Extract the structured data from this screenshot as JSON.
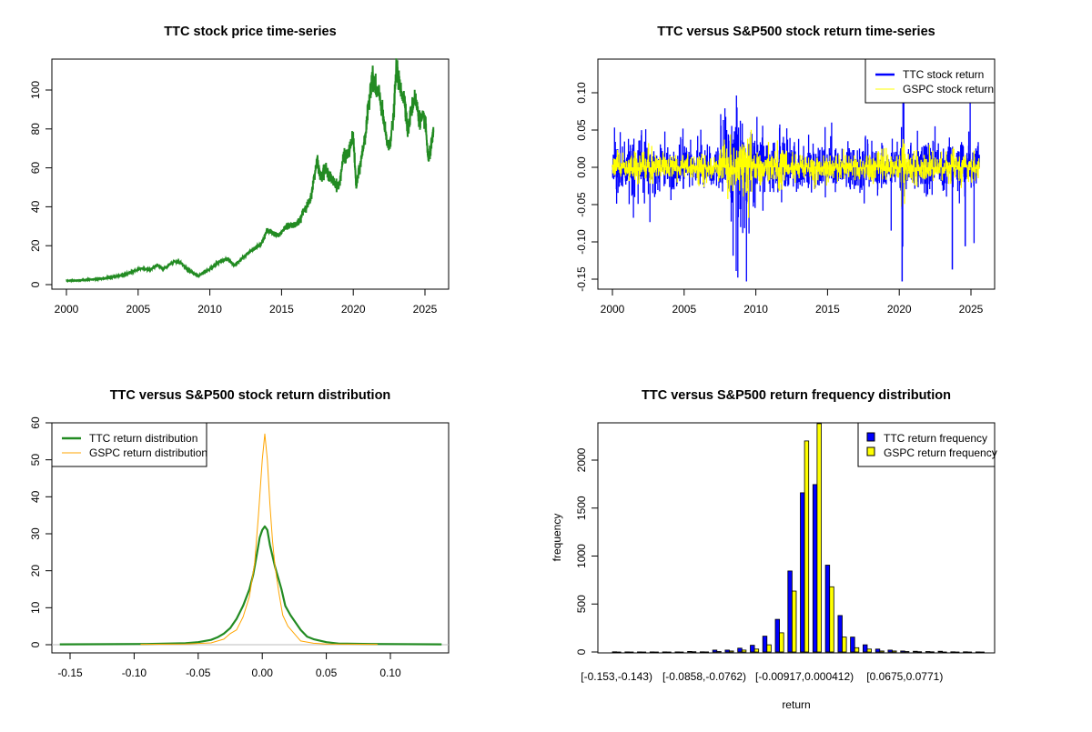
{
  "chart_data": [
    {
      "type": "line",
      "title": "TTC stock price time-series",
      "xlabel": "",
      "ylabel": "",
      "xlim": [
        1999.4,
        2027.1
      ],
      "ylim": [
        -4,
        116
      ],
      "xticks": [
        "2000",
        "2005",
        "2010",
        "2015",
        "2020",
        "2025"
      ],
      "yticks": [
        "0",
        "20",
        "40",
        "60",
        "80",
        "100"
      ],
      "color": "#228B22",
      "series": [
        {
          "name": "TTC price",
          "points": [
            [
              2000,
              2
            ],
            [
              2001,
              2.2
            ],
            [
              2002,
              2.8
            ],
            [
              2003,
              3.5
            ],
            [
              2004,
              5
            ],
            [
              2005.3,
              8.5
            ],
            [
              2005.8,
              7.5
            ],
            [
              2006.3,
              10
            ],
            [
              2006.8,
              8
            ],
            [
              2007.5,
              12
            ],
            [
              2008,
              11
            ],
            [
              2008.5,
              7.5
            ],
            [
              2009.2,
              4.5
            ],
            [
              2010,
              8
            ],
            [
              2010.5,
              11
            ],
            [
              2011.2,
              13.5
            ],
            [
              2011.7,
              10
            ],
            [
              2012.5,
              15
            ],
            [
              2013,
              18
            ],
            [
              2013.6,
              21
            ],
            [
              2014,
              28
            ],
            [
              2014.8,
              25
            ],
            [
              2015.3,
              30
            ],
            [
              2016,
              31
            ],
            [
              2016.3,
              33
            ],
            [
              2016.5,
              38
            ],
            [
              2017,
              43
            ],
            [
              2017.5,
              65
            ],
            [
              2017.7,
              55
            ],
            [
              2018,
              60
            ],
            [
              2018.5,
              54
            ],
            [
              2019,
              50
            ],
            [
              2019.3,
              65
            ],
            [
              2019.7,
              68
            ],
            [
              2020,
              77
            ],
            [
              2020.2,
              50
            ],
            [
              2020.5,
              62
            ],
            [
              2020.9,
              80
            ],
            [
              2021.3,
              108
            ],
            [
              2021.6,
              100
            ],
            [
              2021.8,
              98
            ],
            [
              2022,
              90
            ],
            [
              2022.3,
              75
            ],
            [
              2022.5,
              70
            ],
            [
              2022.8,
              85
            ],
            [
              2023,
              111
            ],
            [
              2023.3,
              100
            ],
            [
              2023.6,
              95
            ],
            [
              2023.8,
              78
            ],
            [
              2024,
              88
            ],
            [
              2024.3,
              97
            ],
            [
              2024.6,
              85
            ],
            [
              2025,
              85
            ],
            [
              2025.25,
              63
            ],
            [
              2025.45,
              72
            ],
            [
              2025.6,
              78
            ]
          ]
        }
      ]
    },
    {
      "type": "line",
      "title": "TTC versus S&P500 stock return time-series",
      "xlim": [
        1999.4,
        2027.1
      ],
      "ylim": [
        -0.165,
        0.145
      ],
      "xticks": [
        "2000",
        "2005",
        "2010",
        "2015",
        "2020",
        "2025"
      ],
      "yticks": [
        "-0.15",
        "-0.10",
        "-0.05",
        "0.00",
        "0.05",
        "0.10"
      ],
      "legend": {
        "position": "top-right",
        "entries": [
          "TTC stock return",
          "GSPC stock return"
        ]
      },
      "series": [
        {
          "name": "TTC stock return",
          "color": "#0000FF",
          "min": -0.153,
          "max": 0.11
        },
        {
          "name": "GSPC stock return",
          "color": "#FFFF00",
          "min": -0.095,
          "max": 0.11
        }
      ]
    },
    {
      "type": "line",
      "title": "TTC versus S&P500 stock return distribution",
      "xlim": [
        -0.168,
        0.15
      ],
      "ylim": [
        -2.2,
        60
      ],
      "xticks": [
        "-0.15",
        "-0.10",
        "-0.05",
        "0.00",
        "0.05",
        "0.10"
      ],
      "yticks": [
        "0",
        "10",
        "20",
        "30",
        "40",
        "50",
        "60"
      ],
      "legend": {
        "position": "top-left",
        "entries": [
          "TTC return distribution",
          "GSPC return distribution"
        ]
      },
      "series": [
        {
          "name": "TTC return distribution",
          "color": "#228B22",
          "points": [
            [
              -0.158,
              0.1
            ],
            [
              -0.09,
              0.2
            ],
            [
              -0.06,
              0.4
            ],
            [
              -0.05,
              0.7
            ],
            [
              -0.04,
              1.3
            ],
            [
              -0.035,
              2
            ],
            [
              -0.03,
              3
            ],
            [
              -0.025,
              4.5
            ],
            [
              -0.02,
              7
            ],
            [
              -0.015,
              10.5
            ],
            [
              -0.01,
              15
            ],
            [
              -0.007,
              19
            ],
            [
              -0.005,
              23
            ],
            [
              -0.002,
              29
            ],
            [
              0,
              31
            ],
            [
              0.002,
              32
            ],
            [
              0.004,
              31
            ],
            [
              0.006,
              27
            ],
            [
              0.01,
              21
            ],
            [
              0.015,
              15
            ],
            [
              0.018,
              10.5
            ],
            [
              0.022,
              8
            ],
            [
              0.03,
              4
            ],
            [
              0.035,
              2.2
            ],
            [
              0.04,
              1.5
            ],
            [
              0.05,
              0.7
            ],
            [
              0.06,
              0.3
            ],
            [
              0.085,
              0.2
            ],
            [
              0.14,
              0.1
            ]
          ]
        },
        {
          "name": "GSPC return distribution",
          "color": "#FFA500",
          "points": [
            [
              -0.095,
              0.1
            ],
            [
              -0.06,
              0.2
            ],
            [
              -0.04,
              0.5
            ],
            [
              -0.03,
              1.5
            ],
            [
              -0.025,
              3
            ],
            [
              -0.02,
              4
            ],
            [
              -0.015,
              7.5
            ],
            [
              -0.01,
              13
            ],
            [
              -0.006,
              22
            ],
            [
              -0.003,
              35
            ],
            [
              0,
              50
            ],
            [
              0.002,
              57
            ],
            [
              0.004,
              50
            ],
            [
              0.006,
              38
            ],
            [
              0.008,
              28
            ],
            [
              0.01,
              21
            ],
            [
              0.013,
              14
            ],
            [
              0.016,
              8
            ],
            [
              0.02,
              5
            ],
            [
              0.025,
              3
            ],
            [
              0.03,
              1
            ],
            [
              0.04,
              0.4
            ],
            [
              0.05,
              0.2
            ],
            [
              0.09,
              0.1
            ]
          ]
        }
      ]
    },
    {
      "type": "bar",
      "title": "TTC versus S&P500 return frequency distribution",
      "xlabel": "return",
      "ylabel": "frequency",
      "ylim": [
        0,
        2380
      ],
      "yticks": [
        "0",
        "500",
        "1000",
        "1500",
        "2000"
      ],
      "categories": [
        "[-0.153,-0.143)",
        "",
        "",
        "",
        "",
        "",
        "",
        "[-0.0858,-0.0762)",
        "",
        "",
        "",
        "",
        "",
        "",
        "",
        "[-0.00917,0.000412)",
        "",
        "",
        "",
        "",
        "",
        "",
        "",
        "[0.0675,0.0771)",
        "",
        "",
        "",
        "",
        "",
        ""
      ],
      "legend": {
        "position": "top-right",
        "entries": [
          "TTC return frequency",
          "GSPC return frequency"
        ]
      },
      "series": [
        {
          "name": "TTC return frequency",
          "color": "#0000FF",
          "values": [
            2,
            1,
            1,
            1,
            1,
            1,
            6,
            2,
            20,
            20,
            40,
            70,
            165,
            340,
            845,
            1660,
            1745,
            905,
            380,
            155,
            75,
            30,
            20,
            10,
            8,
            5,
            8,
            2,
            2,
            1
          ]
        },
        {
          "name": "GSPC return frequency",
          "color": "#FFFF00",
          "values": [
            0,
            0,
            0,
            0,
            0,
            0,
            3,
            1,
            5,
            10,
            20,
            30,
            75,
            200,
            635,
            2200,
            2380,
            680,
            155,
            45,
            30,
            10,
            10,
            5,
            3,
            2,
            0,
            0,
            0,
            0
          ]
        }
      ]
    }
  ]
}
